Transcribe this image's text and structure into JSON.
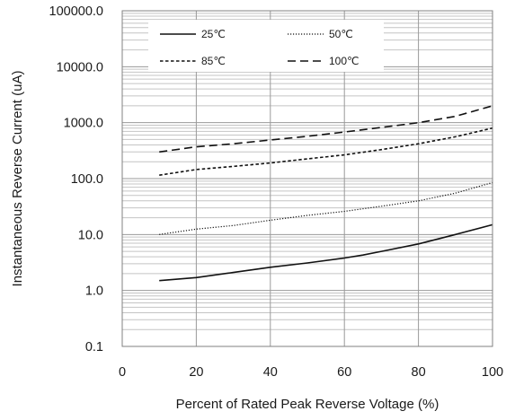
{
  "chart_data": {
    "type": "line",
    "title": "",
    "xlabel": "Percent of  Rated Peak Reverse Voltage (%)",
    "ylabel": "Instantaneous Reverse Current (uA)",
    "x_scale": "linear",
    "y_scale": "log",
    "xlim": [
      0,
      100
    ],
    "ylim": [
      0.1,
      100000
    ],
    "x_ticks": [
      0,
      20,
      40,
      60,
      80,
      100
    ],
    "x_tick_labels": [
      "0",
      "20",
      "40",
      "60",
      "80",
      "100"
    ],
    "y_ticks": [
      0.1,
      1,
      10,
      100,
      1000,
      10000,
      100000
    ],
    "y_tick_labels": [
      "0.1",
      "1.0",
      "10.0",
      "100.0",
      "1000.0",
      "10000.0",
      "100000.0"
    ],
    "grid": "on (major and minor horizontal, major vertical)",
    "legend_placement": "top",
    "series": [
      {
        "name": "25℃",
        "style": "solid",
        "x": [
          10,
          20,
          30,
          40,
          50,
          60,
          65,
          70,
          80,
          90,
          100
        ],
        "y": [
          1.5,
          1.7,
          2.1,
          2.6,
          3.1,
          3.8,
          4.3,
          5.0,
          6.8,
          10,
          15
        ]
      },
      {
        "name": "50℃",
        "style": "dotted",
        "x": [
          10,
          20,
          30,
          40,
          50,
          60,
          70,
          80,
          90,
          100
        ],
        "y": [
          10,
          12.5,
          14.5,
          18,
          22,
          26,
          32,
          40,
          55,
          85
        ]
      },
      {
        "name": "85℃",
        "style": "dashed",
        "x": [
          10,
          20,
          30,
          40,
          50,
          60,
          70,
          80,
          90,
          100
        ],
        "y": [
          115,
          145,
          165,
          190,
          225,
          265,
          330,
          420,
          560,
          800
        ]
      },
      {
        "name": "100℃",
        "style": "longdash",
        "x": [
          10,
          20,
          30,
          40,
          50,
          60,
          70,
          80,
          90,
          100
        ],
        "y": [
          300,
          370,
          420,
          490,
          570,
          680,
          820,
          1000,
          1300,
          2000
        ]
      }
    ]
  }
}
